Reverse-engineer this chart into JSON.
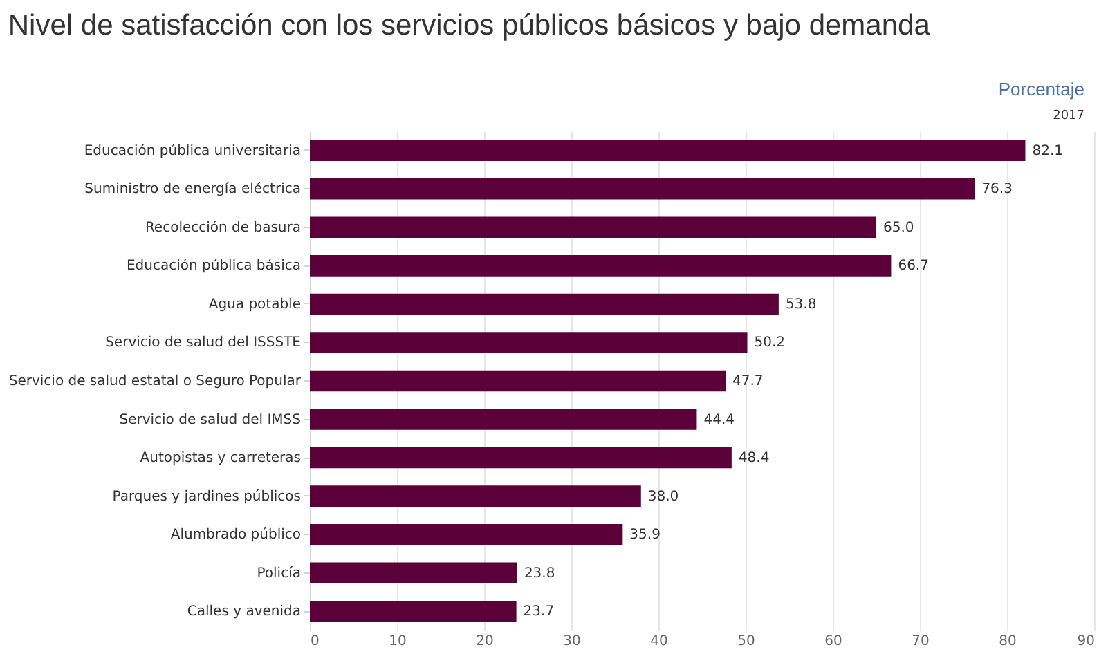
{
  "chart_data": {
    "type": "bar",
    "orientation": "horizontal",
    "title": "Nivel de satisfacción con los servicios públicos básicos y bajo demanda",
    "subtitle": "Porcentaje",
    "annotations": [
      "2017"
    ],
    "categories": [
      "Educación pública universitaria",
      "Suministro de energía eléctrica",
      "Recolección de basura",
      "Educación pública básica",
      "Agua potable",
      "Servicio de salud del ISSSTE",
      "Servicio de salud estatal o Seguro Popular",
      "Servicio de salud del IMSS",
      "Autopistas y carreteras",
      "Parques y jardines  públicos",
      "Alumbrado público",
      "Policía",
      "Calles y avenida"
    ],
    "values": [
      82.1,
      76.3,
      65.0,
      66.7,
      53.8,
      50.2,
      47.7,
      44.4,
      48.4,
      38.0,
      35.9,
      23.8,
      23.7
    ],
    "value_labels": [
      "82.1",
      "76.3",
      "65.0",
      "66.7",
      "53.8",
      "50.2",
      "47.7",
      "44.4",
      "48.4",
      "38.0",
      "35.9",
      "23.8",
      "23.7"
    ],
    "color": "#5c0039",
    "xlim": [
      0,
      90
    ],
    "xticks": [
      0,
      10,
      20,
      30,
      40,
      50,
      60,
      70,
      80,
      90
    ],
    "grid": "x"
  }
}
